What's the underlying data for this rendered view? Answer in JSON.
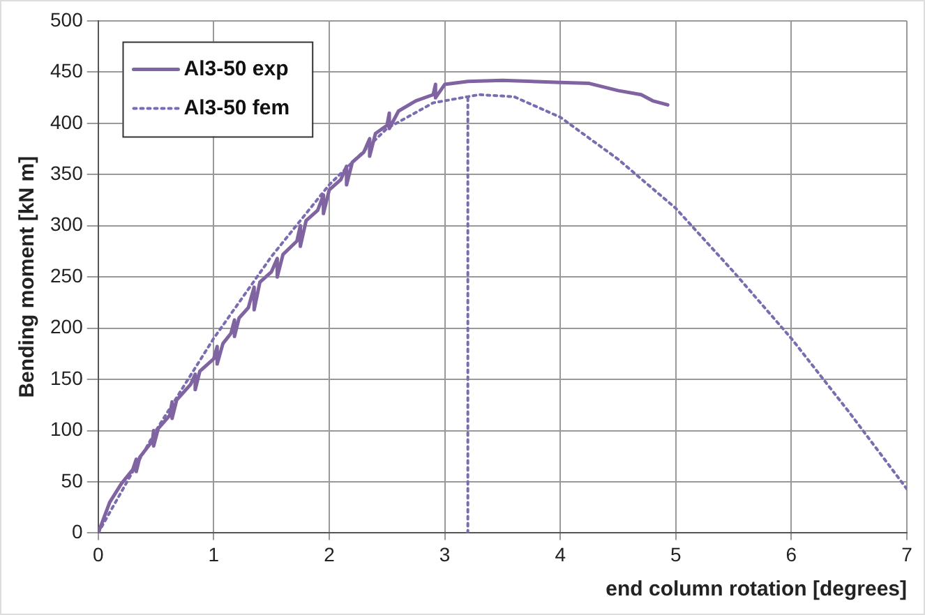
{
  "chart_data": {
    "type": "line",
    "xlabel": "end column rotation [degrees]",
    "ylabel": "Bending moment [kN m]",
    "xlim": [
      0,
      7
    ],
    "xticks": [
      0,
      1,
      2,
      3,
      4,
      5,
      6,
      7
    ],
    "ylim": [
      0,
      500
    ],
    "yticks": [
      0,
      50,
      100,
      150,
      200,
      250,
      300,
      350,
      400,
      450,
      500
    ],
    "grid": true,
    "legend": "top left",
    "marker": "none",
    "series": [
      {
        "name": "Al3-50 exp",
        "color": "#8064a2",
        "line_style": "solid",
        "x": [
          0,
          0.1,
          0.2,
          0.3,
          0.33,
          0.33,
          0.36,
          0.47,
          0.48,
          0.48,
          0.52,
          0.62,
          0.64,
          0.64,
          0.68,
          0.8,
          0.84,
          0.84,
          0.88,
          1.0,
          1.03,
          1.03,
          1.08,
          1.15,
          1.18,
          1.18,
          1.22,
          1.3,
          1.35,
          1.35,
          1.4,
          1.5,
          1.55,
          1.55,
          1.6,
          1.72,
          1.75,
          1.75,
          1.8,
          1.9,
          1.95,
          1.95,
          2.0,
          2.1,
          2.15,
          2.15,
          2.2,
          2.3,
          2.35,
          2.35,
          2.4,
          2.5,
          2.52,
          2.52,
          2.6,
          2.75,
          2.9,
          2.92,
          2.92,
          3.0,
          3.2,
          3.5,
          4.0,
          4.25,
          4.5,
          4.7,
          4.8,
          4.93
        ],
        "values": [
          0,
          30,
          48,
          62,
          72,
          60,
          74,
          90,
          100,
          85,
          102,
          115,
          128,
          112,
          130,
          145,
          155,
          140,
          158,
          170,
          182,
          165,
          185,
          195,
          208,
          192,
          210,
          220,
          240,
          218,
          245,
          255,
          268,
          250,
          272,
          285,
          300,
          280,
          305,
          315,
          330,
          312,
          335,
          345,
          358,
          340,
          362,
          372,
          385,
          368,
          390,
          398,
          410,
          395,
          412,
          422,
          428,
          438,
          425,
          438,
          441,
          442,
          440,
          439,
          432,
          428,
          422,
          418
        ]
      },
      {
        "name": "Al3-50 fem",
        "color": "#7b6bb0",
        "line_style": "dotted",
        "x": [
          0,
          0.5,
          1,
          1.5,
          2,
          2.5,
          2.9,
          3.3,
          3.6,
          4,
          4.5,
          5,
          5.5,
          6,
          6.5,
          7
        ],
        "values": [
          0,
          100,
          190,
          270,
          340,
          395,
          420,
          428,
          426,
          406,
          365,
          317,
          255,
          190,
          118,
          43
        ]
      },
      {
        "color": "#7b6bb0",
        "line_style": "dotted",
        "x": [
          3.2,
          3.2
        ],
        "values": [
          0,
          428
        ]
      }
    ]
  }
}
